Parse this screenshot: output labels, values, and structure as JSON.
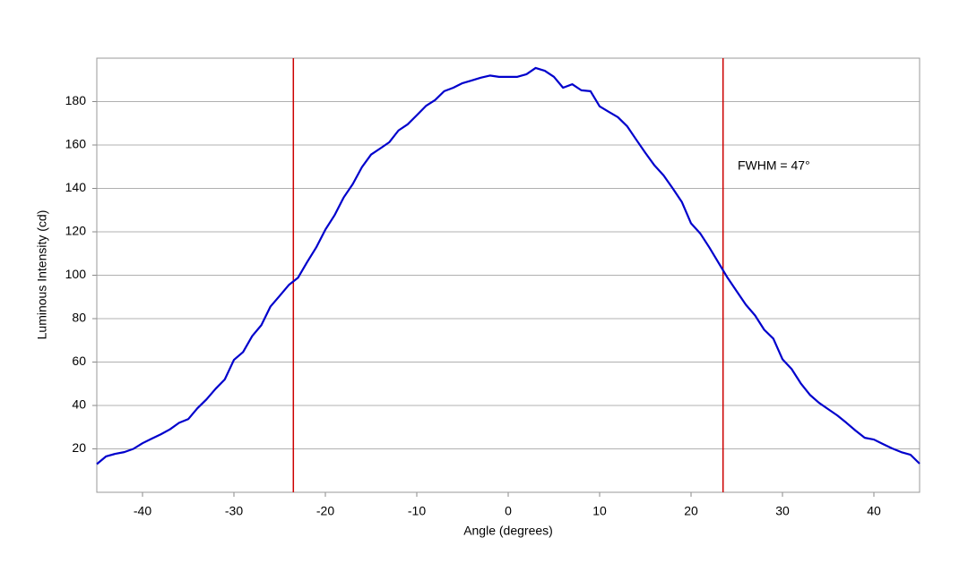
{
  "chart_data": {
    "type": "line",
    "xlabel": "Angle (degrees)",
    "ylabel": "Luminous Intensity (cd)",
    "annotation": "FWHM = 47°",
    "x": [
      -45,
      -44,
      -43,
      -42,
      -41,
      -40,
      -39,
      -38,
      -37,
      -36,
      -35,
      -34,
      -33,
      -32,
      -31,
      -30,
      -29,
      -28,
      -27,
      -26,
      -25,
      -24,
      -23,
      -22,
      -21,
      -20,
      -19,
      -18,
      -17,
      -16,
      -15,
      -14,
      -13,
      -12,
      -11,
      -10,
      -9,
      -8,
      -7,
      -6,
      -5,
      -4,
      -3,
      -2,
      -1,
      0,
      1,
      2,
      3,
      4,
      5,
      6,
      7,
      8,
      9,
      10,
      11,
      12,
      13,
      14,
      15,
      16,
      17,
      18,
      19,
      20,
      21,
      22,
      23,
      24,
      25,
      26,
      27,
      28,
      29,
      30,
      31,
      32,
      33,
      34,
      35,
      36,
      37,
      38,
      39,
      40,
      41,
      42,
      43,
      44,
      45
    ],
    "series": [
      {
        "name": "Luminous Intensity",
        "color": "#0000cc",
        "values": [
          13,
          16.5,
          17.7,
          18.5,
          20,
          22.6,
          24.7,
          26.7,
          29,
          32,
          33.7,
          38.7,
          42.8,
          47.7,
          52,
          61,
          64.6,
          72,
          77,
          85.6,
          90.5,
          95.5,
          98.8,
          106,
          112.8,
          121,
          127.6,
          135.8,
          142,
          149.8,
          155.6,
          158.4,
          161.3,
          166.7,
          169.5,
          173.7,
          178,
          180.7,
          184.8,
          186.4,
          188.5,
          189.7,
          191,
          192,
          191.4,
          191.4,
          191.4,
          192.6,
          195.5,
          194.2,
          191.4,
          186.4,
          188,
          185.2,
          184.8,
          177.8,
          175.3,
          172.8,
          168.7,
          162.5,
          156.4,
          150.6,
          146,
          140,
          133.7,
          123.9,
          119.3,
          112.8,
          105.8,
          98.8,
          92.6,
          86.4,
          81.5,
          74.9,
          70.8,
          61.3,
          56.8,
          50.2,
          44.9,
          41.2,
          38.3,
          35.4,
          32,
          28.4,
          25.1,
          24.3,
          22.2,
          20.2,
          18.5,
          17.3,
          13.2
        ]
      }
    ],
    "vlines": [
      -23.5,
      23.5
    ],
    "vline_color": "#cc0000",
    "xlim": [
      -45,
      45
    ],
    "xticks": [
      -40,
      -30,
      -20,
      -10,
      0,
      10,
      20,
      30,
      40
    ],
    "ylim": [
      0,
      200
    ],
    "yticks": [
      20,
      40,
      60,
      80,
      100,
      120,
      140,
      160,
      180
    ],
    "grid": true
  }
}
